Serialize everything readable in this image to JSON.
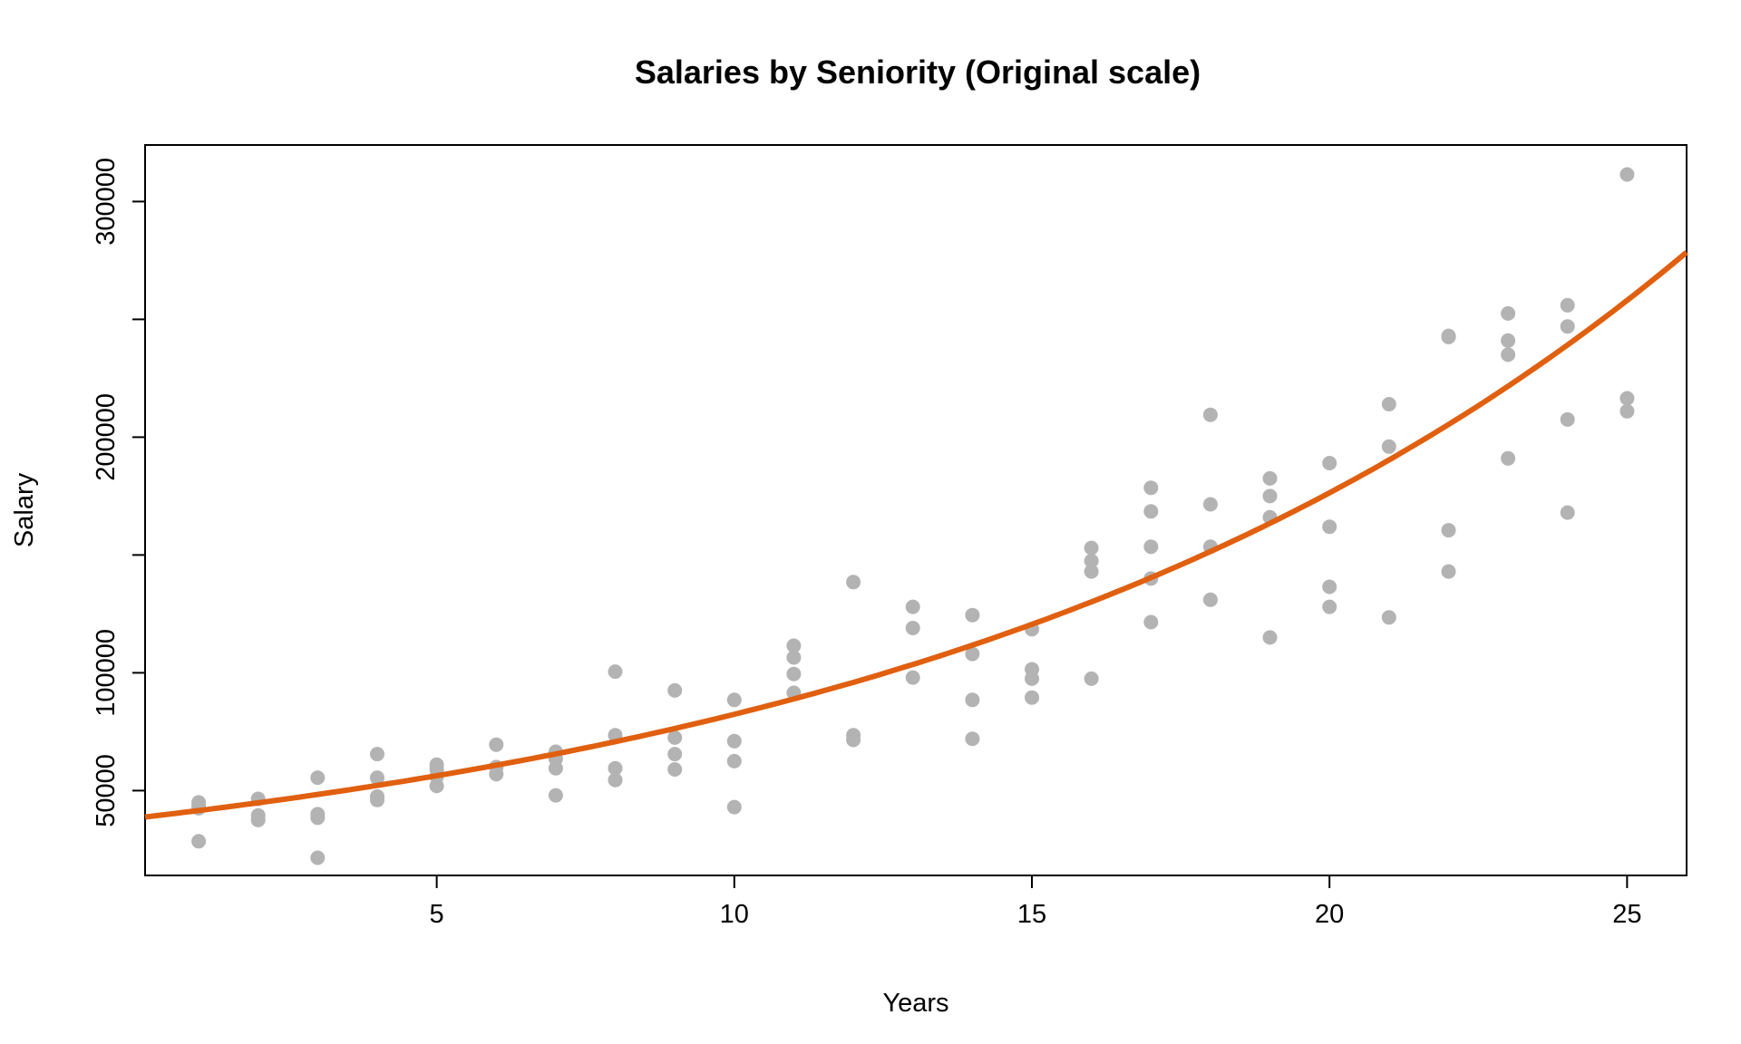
{
  "chart_data": {
    "type": "scatter",
    "title": "Salaries by Seniority (Original scale)",
    "xlabel": "Years",
    "ylabel": "Salary",
    "xlim": [
      0.1,
      26.0
    ],
    "ylim": [
      14000,
      324000
    ],
    "x_ticks": [
      5,
      10,
      15,
      20,
      25
    ],
    "y_ticks": [
      50000,
      100000,
      150000,
      200000,
      250000,
      300000
    ],
    "y_tick_labels": [
      "50000",
      "100000",
      "",
      "200000",
      "",
      "300000"
    ],
    "point_color": "#b3b3b3",
    "curve_color": "#e06010",
    "points": [
      [
        1,
        45000
      ],
      [
        1,
        42500
      ],
      [
        1,
        43500
      ],
      [
        1,
        28500
      ],
      [
        2,
        46500
      ],
      [
        2,
        39500
      ],
      [
        2,
        37500
      ],
      [
        3,
        55500
      ],
      [
        3,
        40000
      ],
      [
        3,
        38500
      ],
      [
        3,
        21500
      ],
      [
        4,
        65500
      ],
      [
        4,
        55500
      ],
      [
        4,
        47500
      ],
      [
        4,
        46000
      ],
      [
        5,
        61000
      ],
      [
        5,
        59000
      ],
      [
        5,
        56000
      ],
      [
        5,
        52000
      ],
      [
        6,
        69500
      ],
      [
        6,
        60000
      ],
      [
        6,
        57000
      ],
      [
        7,
        66500
      ],
      [
        7,
        63500
      ],
      [
        7,
        59500
      ],
      [
        7,
        48000
      ],
      [
        8,
        100500
      ],
      [
        8,
        73500
      ],
      [
        8,
        59500
      ],
      [
        8,
        54500
      ],
      [
        9,
        92500
      ],
      [
        9,
        72500
      ],
      [
        9,
        65500
      ],
      [
        9,
        59000
      ],
      [
        10,
        88500
      ],
      [
        10,
        71000
      ],
      [
        10,
        62500
      ],
      [
        10,
        43000
      ],
      [
        11,
        111500
      ],
      [
        11,
        106500
      ],
      [
        11,
        99500
      ],
      [
        11,
        91500
      ],
      [
        12,
        138500
      ],
      [
        12,
        73500
      ],
      [
        12,
        71500
      ],
      [
        13,
        128000
      ],
      [
        13,
        119000
      ],
      [
        13,
        98000
      ],
      [
        14,
        124500
      ],
      [
        14,
        108000
      ],
      [
        14,
        88500
      ],
      [
        14,
        72000
      ],
      [
        15,
        118500
      ],
      [
        15,
        101500
      ],
      [
        15,
        97500
      ],
      [
        15,
        89500
      ],
      [
        16,
        153000
      ],
      [
        16,
        147500
      ],
      [
        16,
        143000
      ],
      [
        16,
        97500
      ],
      [
        17,
        178500
      ],
      [
        17,
        168500
      ],
      [
        17,
        153500
      ],
      [
        17,
        140000
      ],
      [
        17,
        121500
      ],
      [
        18,
        209500
      ],
      [
        18,
        171500
      ],
      [
        18,
        153500
      ],
      [
        18,
        131000
      ],
      [
        19,
        182500
      ],
      [
        19,
        175000
      ],
      [
        19,
        166000
      ],
      [
        19,
        115000
      ],
      [
        20,
        189000
      ],
      [
        20,
        162000
      ],
      [
        20,
        136500
      ],
      [
        20,
        128000
      ],
      [
        21,
        214000
      ],
      [
        21,
        196000
      ],
      [
        21,
        123500
      ],
      [
        22,
        242500
      ],
      [
        22,
        243000
      ],
      [
        22,
        160500
      ],
      [
        22,
        143000
      ],
      [
        23,
        252500
      ],
      [
        23,
        241000
      ],
      [
        23,
        235000
      ],
      [
        23,
        191000
      ],
      [
        24,
        256000
      ],
      [
        24,
        247000
      ],
      [
        24,
        207500
      ],
      [
        24,
        168000
      ],
      [
        25,
        311500
      ],
      [
        25,
        216500
      ],
      [
        25,
        211000
      ]
    ],
    "curve": {
      "type": "exponential",
      "a": 38500,
      "b": 0.0761
    }
  }
}
